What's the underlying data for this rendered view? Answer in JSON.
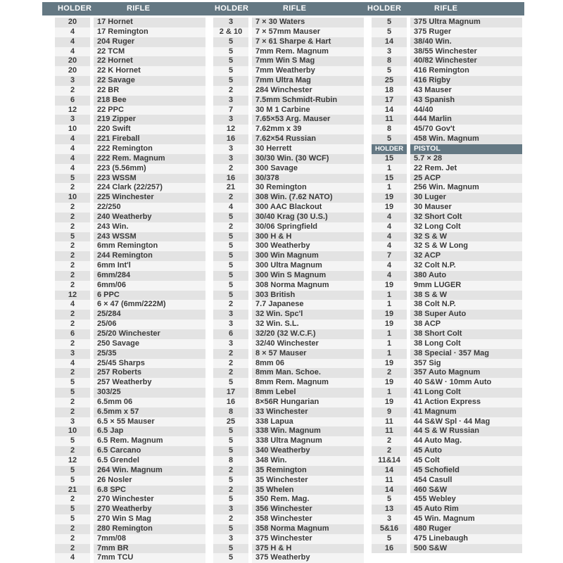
{
  "colors": {
    "header_bg": "#647883",
    "row_shaded": "#e3e3e3",
    "row_light": "#f4f4f4"
  },
  "header": [
    {
      "holder": "HOLDER",
      "type": "RIFLE"
    },
    {
      "holder": "HOLDER",
      "type": "RIFLE"
    },
    {
      "holder": "HOLDER",
      "type": "RIFLE"
    }
  ],
  "columns": [
    [
      {
        "holder": "20",
        "name": "17 Hornet"
      },
      {
        "holder": "4",
        "name": "17 Remington"
      },
      {
        "holder": "4",
        "name": "204 Ruger"
      },
      {
        "holder": "4",
        "name": "22 TCM"
      },
      {
        "holder": "20",
        "name": "22 Hornet"
      },
      {
        "holder": "20",
        "name": "22 K Hornet"
      },
      {
        "holder": "3",
        "name": "22 Savage"
      },
      {
        "holder": "2",
        "name": "22 BR"
      },
      {
        "holder": "6",
        "name": "218 Bee"
      },
      {
        "holder": "12",
        "name": "22 PPC"
      },
      {
        "holder": "3",
        "name": "219 Zipper"
      },
      {
        "holder": "10",
        "name": "220 Swift"
      },
      {
        "holder": "4",
        "name": "221 Fireball"
      },
      {
        "holder": "4",
        "name": "222 Remington"
      },
      {
        "holder": "4",
        "name": "222 Rem. Magnum"
      },
      {
        "holder": "4",
        "name": "223 (5.56mm)"
      },
      {
        "holder": "5",
        "name": "223 WSSM"
      },
      {
        "holder": "2",
        "name": "224 Clark (22/257)"
      },
      {
        "holder": "10",
        "name": "225 Winchester"
      },
      {
        "holder": "2",
        "name": "22/250"
      },
      {
        "holder": "2",
        "name": "240 Weatherby"
      },
      {
        "holder": "2",
        "name": "243 Win."
      },
      {
        "holder": "5",
        "name": "243 WSSM"
      },
      {
        "holder": "2",
        "name": "6mm Remington"
      },
      {
        "holder": "2",
        "name": "244 Remington"
      },
      {
        "holder": "2",
        "name": "6mm Int'l"
      },
      {
        "holder": "2",
        "name": "6mm/284"
      },
      {
        "holder": "2",
        "name": "6mm/06"
      },
      {
        "holder": "12",
        "name": "6 PPC"
      },
      {
        "holder": "4",
        "name": "6 × 47 (6mm/222M)"
      },
      {
        "holder": "2",
        "name": "25/284"
      },
      {
        "holder": "2",
        "name": "25/06"
      },
      {
        "holder": "6",
        "name": "25/20 Winchester"
      },
      {
        "holder": "2",
        "name": "250 Savage"
      },
      {
        "holder": "3",
        "name": "25/35"
      },
      {
        "holder": "4",
        "name": "25/45 Sharps"
      },
      {
        "holder": "2",
        "name": "257 Roberts"
      },
      {
        "holder": "5",
        "name": "257 Weatherby"
      },
      {
        "holder": "5",
        "name": "303/25"
      },
      {
        "holder": "2",
        "name": "6.5mm 06"
      },
      {
        "holder": "2",
        "name": "6.5mm x 57"
      },
      {
        "holder": "3",
        "name": "6.5 × 55 Mauser"
      },
      {
        "holder": "10",
        "name": "6.5 Jap"
      },
      {
        "holder": "5",
        "name": "6.5 Rem. Magnum"
      },
      {
        "holder": "2",
        "name": "6.5 Carcano"
      },
      {
        "holder": "12",
        "name": "6.5 Grendel"
      },
      {
        "holder": "5",
        "name": "264 Win. Magnum"
      },
      {
        "holder": "5",
        "name": "26 Nosler"
      },
      {
        "holder": "21",
        "name": "6.8 SPC"
      },
      {
        "holder": "2",
        "name": "270 Winchester"
      },
      {
        "holder": "5",
        "name": "270 Weatherby"
      },
      {
        "holder": "5",
        "name": "270 Win S Mag"
      },
      {
        "holder": "2",
        "name": "280 Remington"
      },
      {
        "holder": "2",
        "name": "7mm/08"
      },
      {
        "holder": "2",
        "name": "7mm BR"
      },
      {
        "holder": "4",
        "name": "7mm TCU"
      }
    ],
    [
      {
        "holder": "3",
        "name": "7 × 30 Waters"
      },
      {
        "holder": "2 & 10",
        "name": "7 × 57mm Mauser"
      },
      {
        "holder": "5",
        "name": "7 × 61 Sharpe & Hart"
      },
      {
        "holder": "5",
        "name": "7mm Rem. Magnum"
      },
      {
        "holder": "5",
        "name": "7mm Win S Mag"
      },
      {
        "holder": "5",
        "name": "7mm Weatherby"
      },
      {
        "holder": "5",
        "name": "7mm Ultra Mag"
      },
      {
        "holder": "2",
        "name": "284 Winchester"
      },
      {
        "holder": "3",
        "name": "7.5mm Schmidt-Rubin"
      },
      {
        "holder": "7",
        "name": "30 M 1 Carbine"
      },
      {
        "holder": "3",
        "name": "7.65×53 Arg. Mauser"
      },
      {
        "holder": "12",
        "name": "7.62mm x 39"
      },
      {
        "holder": "16",
        "name": "7.62×54 Russian"
      },
      {
        "holder": "3",
        "name": "30 Herrett"
      },
      {
        "holder": "3",
        "name": "30/30 Win. (30 WCF)"
      },
      {
        "holder": "2",
        "name": "300 Savage"
      },
      {
        "holder": "16",
        "name": "30/378"
      },
      {
        "holder": "21",
        "name": "30 Remington"
      },
      {
        "holder": "2",
        "name": "308 Win. (7.62 NATO)"
      },
      {
        "holder": "4",
        "name": "300 AAC Blackout"
      },
      {
        "holder": "5",
        "name": "30/40 Krag (30 U.S.)"
      },
      {
        "holder": "2",
        "name": "30/06 Springfield"
      },
      {
        "holder": "5",
        "name": "300 H & H"
      },
      {
        "holder": "5",
        "name": "300 Weatherby"
      },
      {
        "holder": "5",
        "name": "300 Win  Magnum"
      },
      {
        "holder": "5",
        "name": "300 Ultra Magnum"
      },
      {
        "holder": "5",
        "name": "300 Win S Magnum"
      },
      {
        "holder": "5",
        "name": "308 Norma Magnum"
      },
      {
        "holder": "5",
        "name": "303 British"
      },
      {
        "holder": "2",
        "name": "7.7 Japanese"
      },
      {
        "holder": "3",
        "name": "32 Win. Spc'l"
      },
      {
        "holder": "3",
        "name": "32 Win. S.L."
      },
      {
        "holder": "6",
        "name": "32/20 (32 W.C.F.)"
      },
      {
        "holder": "3",
        "name": "32/40 Winchester"
      },
      {
        "holder": "2",
        "name": "8 × 57 Mauser"
      },
      {
        "holder": "2",
        "name": "8mm 06"
      },
      {
        "holder": "2",
        "name": "8mm Man. Schoe."
      },
      {
        "holder": "5",
        "name": "8mm Rem. Magnum"
      },
      {
        "holder": "17",
        "name": "8mm Lebel"
      },
      {
        "holder": "16",
        "name": "8×56R Hungarian"
      },
      {
        "holder": "8",
        "name": "33 Winchester"
      },
      {
        "holder": "25",
        "name": "338 Lapua"
      },
      {
        "holder": "5",
        "name": "338 Win. Magnum"
      },
      {
        "holder": "5",
        "name": "338 Ultra Magnum"
      },
      {
        "holder": "5",
        "name": "340 Weatherby"
      },
      {
        "holder": "8",
        "name": "348 Win."
      },
      {
        "holder": "2",
        "name": "35 Remington"
      },
      {
        "holder": "5",
        "name": "35 Winchester"
      },
      {
        "holder": "2",
        "name": "35 Whelen"
      },
      {
        "holder": "5",
        "name": "350 Rem. Mag."
      },
      {
        "holder": "3",
        "name": "356 Winchester"
      },
      {
        "holder": "2",
        "name": "358 Winchester"
      },
      {
        "holder": "5",
        "name": "358 Norma Magnum"
      },
      {
        "holder": "3",
        "name": "375 Winchester"
      },
      {
        "holder": "5",
        "name": "375 H & H"
      },
      {
        "holder": "5",
        "name": "375 Weatherby"
      }
    ],
    [
      {
        "holder": "5",
        "name": "375 Ultra Magnum"
      },
      {
        "holder": "5",
        "name": "375 Ruger"
      },
      {
        "holder": "14",
        "name": "38/40 Win."
      },
      {
        "holder": "3",
        "name": "38/55 Winchester"
      },
      {
        "holder": "8",
        "name": "40/82 Winchester"
      },
      {
        "holder": "5",
        "name": "416 Remington"
      },
      {
        "holder": "25",
        "name": "416 Rigby"
      },
      {
        "holder": "18",
        "name": "43 Mauser"
      },
      {
        "holder": "17",
        "name": "43 Spanish"
      },
      {
        "holder": "14",
        "name": "44/40"
      },
      {
        "holder": "11",
        "name": "444 Marlin"
      },
      {
        "holder": "8",
        "name": "45/70 Gov't"
      },
      {
        "holder": "5",
        "name": "458 Win. Magnum"
      },
      {
        "holder": "HOLDER",
        "name": "PISTOL",
        "sub": true
      },
      {
        "holder": "15",
        "name": "5.7 × 28"
      },
      {
        "holder": "1",
        "name": "22 Rem. Jet"
      },
      {
        "holder": "15",
        "name": "25 ACP"
      },
      {
        "holder": "1",
        "name": "256 Win. Magnum"
      },
      {
        "holder": "19",
        "name": "30 Luger"
      },
      {
        "holder": "19",
        "name": "30 Mauser"
      },
      {
        "holder": "4",
        "name": "32 Short Colt"
      },
      {
        "holder": "4",
        "name": "32 Long Colt"
      },
      {
        "holder": "4",
        "name": "32 S & W"
      },
      {
        "holder": "4",
        "name": "32 S & W Long"
      },
      {
        "holder": "7",
        "name": "32 ACP"
      },
      {
        "holder": "4",
        "name": "32 Colt N.P."
      },
      {
        "holder": "4",
        "name": "380 Auto"
      },
      {
        "holder": "19",
        "name": "9mm LUGER"
      },
      {
        "holder": "1",
        "name": "38 S & W"
      },
      {
        "holder": "1",
        "name": "38 Colt N.P."
      },
      {
        "holder": "19",
        "name": "38 Super Auto"
      },
      {
        "holder": "19",
        "name": "38 ACP"
      },
      {
        "holder": "1",
        "name": "38 Short Colt"
      },
      {
        "holder": "1",
        "name": "38 Long Colt"
      },
      {
        "holder": "1",
        "name": "38 Special · 357 Mag"
      },
      {
        "holder": "19",
        "name": "357 Sig"
      },
      {
        "holder": "2",
        "name": "357 Auto Magnum"
      },
      {
        "holder": "19",
        "name": "40 S&W · 10mm Auto"
      },
      {
        "holder": "1",
        "name": "41 Long Colt"
      },
      {
        "holder": "19",
        "name": "41 Action Express"
      },
      {
        "holder": "9",
        "name": "41 Magnum"
      },
      {
        "holder": "11",
        "name": "44 S&W Spl · 44 Mag"
      },
      {
        "holder": "11",
        "name": "44 S & W Russian"
      },
      {
        "holder": "2",
        "name": "44 Auto Mag."
      },
      {
        "holder": "2",
        "name": "45 Auto"
      },
      {
        "holder": "11&14",
        "name": "45 Colt"
      },
      {
        "holder": "14",
        "name": "45 Schofield"
      },
      {
        "holder": "11",
        "name": "454 Casull"
      },
      {
        "holder": "14",
        "name": "460 S&W"
      },
      {
        "holder": "5",
        "name": "455 Webley"
      },
      {
        "holder": "13",
        "name": "45 Auto Rim"
      },
      {
        "holder": "3",
        "name": "45 Win. Magnum"
      },
      {
        "holder": "5&16",
        "name": "480 Ruger"
      },
      {
        "holder": "5",
        "name": "475 Linebaugh"
      },
      {
        "holder": "16",
        "name": "500 S&W"
      }
    ]
  ]
}
